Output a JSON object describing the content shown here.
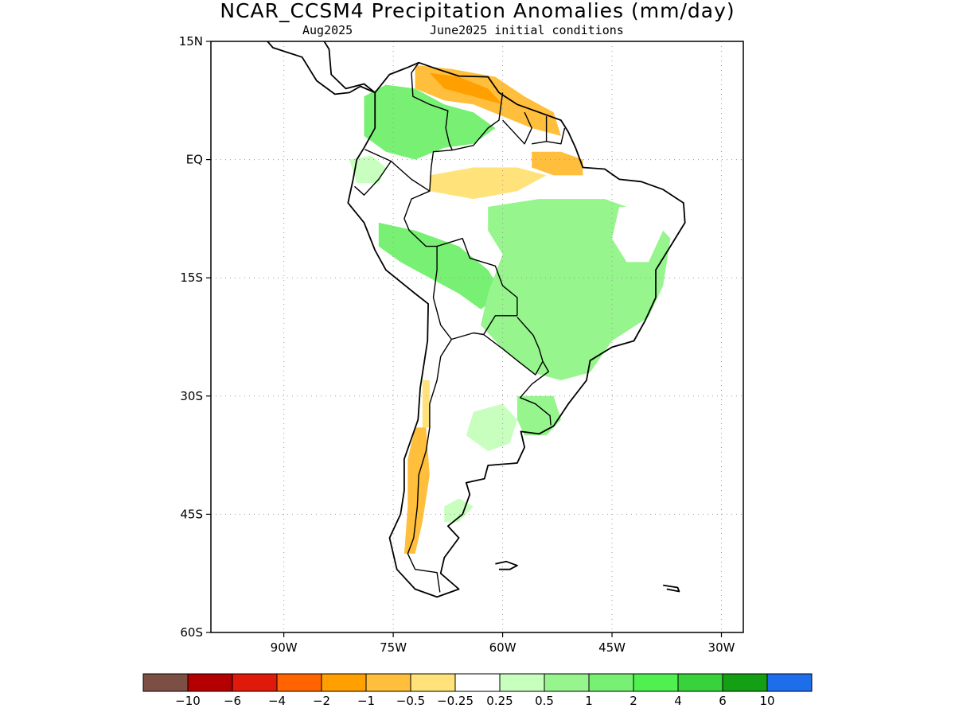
{
  "title": "NCAR_CCSM4 Precipitation Anomalies (mm/day)",
  "subtitle_left": "Aug2025",
  "subtitle_right": "June2025 initial conditions",
  "map": {
    "lon_range": [
      -100,
      -27
    ],
    "lat_range": [
      -60,
      15
    ],
    "lat_ticks": [
      {
        "value": 15,
        "label": "15N"
      },
      {
        "value": 0,
        "label": "EQ"
      },
      {
        "value": -15,
        "label": "15S"
      },
      {
        "value": -30,
        "label": "30S"
      },
      {
        "value": -45,
        "label": "45S"
      },
      {
        "value": -60,
        "label": "60S"
      }
    ],
    "lon_ticks": [
      {
        "value": -90,
        "label": "90W"
      },
      {
        "value": -75,
        "label": "75W"
      },
      {
        "value": -60,
        "label": "60W"
      },
      {
        "value": -45,
        "label": "45W"
      },
      {
        "value": -30,
        "label": "30W"
      }
    ],
    "grid_lines": "dotted"
  },
  "colorbar": {
    "colors": [
      "#7b4f44",
      "#b40000",
      "#e01a0a",
      "#ff6400",
      "#ffa000",
      "#ffbe3c",
      "#ffe37a",
      "#ffffff",
      "#c8ffbe",
      "#96f58c",
      "#78f073",
      "#50f050",
      "#37d23c",
      "#14a014",
      "#1e6eeb"
    ],
    "labels": [
      "−10",
      "−6",
      "−4",
      "−2",
      "−1",
      "−0.5",
      "−0.25",
      "0.25",
      "0.5",
      "1",
      "2",
      "4",
      "6",
      "10"
    ]
  },
  "anomaly_regions": [
    {
      "name": "venezuela-dry",
      "color": "#ffbe3c",
      "points": [
        [
          -72,
          12
        ],
        [
          -67,
          11.5
        ],
        [
          -61,
          10.5
        ],
        [
          -57,
          8
        ],
        [
          -53,
          6
        ],
        [
          -52,
          3
        ],
        [
          -56,
          4
        ],
        [
          -60,
          5.5
        ],
        [
          -64,
          7
        ],
        [
          -68,
          7.5
        ],
        [
          -72,
          9
        ]
      ]
    },
    {
      "name": "venezuela-core-dry",
      "color": "#ffa000",
      "points": [
        [
          -70,
          11
        ],
        [
          -66,
          10.5
        ],
        [
          -62,
          9
        ],
        [
          -60,
          7
        ],
        [
          -64,
          8
        ],
        [
          -68,
          9
        ]
      ]
    },
    {
      "name": "amazon-mouth-dry",
      "color": "#ffbe3c",
      "points": [
        [
          -56,
          1
        ],
        [
          -52,
          1
        ],
        [
          -49,
          0
        ],
        [
          -49,
          -2
        ],
        [
          -53,
          -2
        ],
        [
          -56,
          -1
        ]
      ]
    },
    {
      "name": "central-amazon-dry",
      "color": "#ffe37a",
      "points": [
        [
          -70,
          -2
        ],
        [
          -64,
          -1
        ],
        [
          -58,
          -1
        ],
        [
          -54,
          -2
        ],
        [
          -58,
          -4
        ],
        [
          -64,
          -5
        ],
        [
          -70,
          -4
        ]
      ]
    },
    {
      "name": "colombia-wet",
      "color": "#78f073",
      "points": [
        [
          -79,
          8
        ],
        [
          -76,
          9.5
        ],
        [
          -72,
          9
        ],
        [
          -68,
          7
        ],
        [
          -64,
          6
        ],
        [
          -61,
          4
        ],
        [
          -64,
          2
        ],
        [
          -68,
          1.5
        ],
        [
          -72,
          0
        ],
        [
          -76,
          1
        ],
        [
          -79,
          3
        ]
      ]
    },
    {
      "name": "ecuador-peru-wet",
      "color": "#c8ffbe",
      "points": [
        [
          -81,
          0
        ],
        [
          -78,
          0.5
        ],
        [
          -76,
          -1
        ],
        [
          -77,
          -3
        ],
        [
          -80,
          -3
        ]
      ]
    },
    {
      "name": "peru-bolivia-wet",
      "color": "#78f073",
      "points": [
        [
          -77,
          -8
        ],
        [
          -72,
          -9
        ],
        [
          -66,
          -11
        ],
        [
          -62,
          -14
        ],
        [
          -60,
          -17
        ],
        [
          -63,
          -19
        ],
        [
          -66,
          -17
        ],
        [
          -70,
          -15
        ],
        [
          -74,
          -13
        ],
        [
          -77,
          -11
        ]
      ]
    },
    {
      "name": "brazil-wet",
      "color": "#96f58c",
      "points": [
        [
          -62,
          -6
        ],
        [
          -55,
          -5
        ],
        [
          -46,
          -5
        ],
        [
          -40,
          -7
        ],
        [
          -37,
          -10
        ],
        [
          -38,
          -16
        ],
        [
          -40,
          -20
        ],
        [
          -45,
          -23
        ],
        [
          -48,
          -27
        ],
        [
          -52,
          -28
        ],
        [
          -56,
          -27
        ],
        [
          -60,
          -24
        ],
        [
          -63,
          -21
        ],
        [
          -62,
          -17
        ],
        [
          -60,
          -12
        ],
        [
          -62,
          -9
        ]
      ]
    },
    {
      "name": "nordeste-normal",
      "color": "#ffffff",
      "points": [
        [
          -44,
          -6
        ],
        [
          -40,
          -6
        ],
        [
          -38,
          -9
        ],
        [
          -40,
          -13
        ],
        [
          -43,
          -13
        ],
        [
          -45,
          -10
        ]
      ]
    },
    {
      "name": "uruguay-wet",
      "color": "#96f58c",
      "points": [
        [
          -58,
          -30
        ],
        [
          -53,
          -30
        ],
        [
          -52,
          -33
        ],
        [
          -54,
          -35
        ],
        [
          -57,
          -35
        ],
        [
          -58,
          -33
        ]
      ]
    },
    {
      "name": "argentina-wet",
      "color": "#c8ffbe",
      "points": [
        [
          -64,
          -32
        ],
        [
          -60,
          -31
        ],
        [
          -58,
          -33
        ],
        [
          -59,
          -36
        ],
        [
          -62,
          -37
        ],
        [
          -65,
          -35
        ]
      ]
    },
    {
      "name": "patagonia-wet",
      "color": "#c8ffbe",
      "points": [
        [
          -68,
          -44
        ],
        [
          -66,
          -43
        ],
        [
          -64,
          -44
        ],
        [
          -66,
          -46
        ],
        [
          -68,
          -46
        ]
      ]
    },
    {
      "name": "chile-dry",
      "color": "#ffbe3c",
      "points": [
        [
          -72,
          -34
        ],
        [
          -70.5,
          -34
        ],
        [
          -70,
          -40
        ],
        [
          -71,
          -46
        ],
        [
          -72,
          -50
        ],
        [
          -73.5,
          -50
        ],
        [
          -73,
          -44
        ],
        [
          -73,
          -38
        ]
      ]
    },
    {
      "name": "chile-mild-dry",
      "color": "#ffe37a",
      "points": [
        [
          -71,
          -28
        ],
        [
          -70,
          -28
        ],
        [
          -70,
          -34
        ],
        [
          -71,
          -34
        ]
      ]
    }
  ],
  "coastlines": [
    {
      "name": "south-america",
      "points": [
        [
          -77.5,
          8.5
        ],
        [
          -75.5,
          10.8
        ],
        [
          -73,
          11.7
        ],
        [
          -71.5,
          12.3
        ],
        [
          -69,
          11.5
        ],
        [
          -66,
          10.6
        ],
        [
          -62,
          10.5
        ],
        [
          -60.5,
          8.5
        ],
        [
          -58,
          7
        ],
        [
          -55,
          6
        ],
        [
          -52,
          5
        ],
        [
          -51,
          3.5
        ],
        [
          -50,
          1.5
        ],
        [
          -49,
          -1
        ],
        [
          -46,
          -1.2
        ],
        [
          -44,
          -2.5
        ],
        [
          -41,
          -2.8
        ],
        [
          -38,
          -3.8
        ],
        [
          -35.2,
          -5.5
        ],
        [
          -35,
          -8
        ],
        [
          -37,
          -11
        ],
        [
          -39,
          -14
        ],
        [
          -39,
          -17.5
        ],
        [
          -40.5,
          -20.5
        ],
        [
          -42,
          -23
        ],
        [
          -45,
          -23.8
        ],
        [
          -48,
          -25.5
        ],
        [
          -48.5,
          -28
        ],
        [
          -51,
          -31
        ],
        [
          -53,
          -33.8
        ],
        [
          -55,
          -34.8
        ],
        [
          -57.5,
          -34.5
        ],
        [
          -57,
          -36.5
        ],
        [
          -58,
          -38.5
        ],
        [
          -62,
          -38.8
        ],
        [
          -62.5,
          -40.5
        ],
        [
          -65,
          -41
        ],
        [
          -64.5,
          -42.5
        ],
        [
          -65.5,
          -45
        ],
        [
          -67.5,
          -46.5
        ],
        [
          -66,
          -48
        ],
        [
          -68,
          -50.5
        ],
        [
          -68.5,
          -52.5
        ],
        [
          -66,
          -54.5
        ],
        [
          -69,
          -55.5
        ],
        [
          -72,
          -54.5
        ],
        [
          -74.5,
          -52
        ],
        [
          -75.5,
          -48
        ],
        [
          -74,
          -45
        ],
        [
          -73.5,
          -42
        ],
        [
          -73.5,
          -38
        ],
        [
          -71.6,
          -33
        ],
        [
          -71.3,
          -29
        ],
        [
          -70.3,
          -23
        ],
        [
          -70.2,
          -18.3
        ],
        [
          -72,
          -17
        ],
        [
          -76,
          -14
        ],
        [
          -77.5,
          -11.5
        ],
        [
          -79,
          -8
        ],
        [
          -81.2,
          -5.5
        ],
        [
          -80.5,
          -2.5
        ],
        [
          -80,
          0
        ],
        [
          -79,
          1.5
        ],
        [
          -77.5,
          4
        ],
        [
          -77.5,
          8.5
        ]
      ]
    },
    {
      "name": "central-america",
      "points": [
        [
          -77.5,
          8.5
        ],
        [
          -79.5,
          9.3
        ],
        [
          -81,
          8.5
        ],
        [
          -83,
          8.3
        ],
        [
          -85.5,
          10
        ],
        [
          -87.5,
          13
        ],
        [
          -89.5,
          13.6
        ],
        [
          -91.5,
          14.2
        ],
        [
          -93,
          15.8
        ],
        [
          -94.5,
          16
        ],
        [
          -96.5,
          15.7
        ]
      ]
    },
    {
      "name": "central-america-caribbean",
      "points": [
        [
          -77.5,
          8.5
        ],
        [
          -79,
          9.6
        ],
        [
          -81.5,
          9
        ],
        [
          -83.5,
          10.8
        ],
        [
          -83.8,
          14
        ],
        [
          -85,
          15.8
        ],
        [
          -88,
          15.8
        ],
        [
          -88.5,
          17.5
        ]
      ]
    },
    {
      "name": "falklands",
      "points": [
        [
          -61,
          -51.3
        ],
        [
          -59.5,
          -51
        ],
        [
          -58,
          -51.5
        ],
        [
          -59,
          -52
        ],
        [
          -60.5,
          -52
        ]
      ]
    },
    {
      "name": "south-georgia",
      "points": [
        [
          -38,
          -54
        ],
        [
          -36,
          -54.3
        ],
        [
          -35.8,
          -54.8
        ],
        [
          -37.5,
          -54.5
        ]
      ]
    }
  ],
  "borders": [
    {
      "name": "colombia-venezuela",
      "points": [
        [
          -71.5,
          12.3
        ],
        [
          -72.5,
          11
        ],
        [
          -72.3,
          8
        ],
        [
          -70,
          7
        ],
        [
          -67.5,
          6.2
        ],
        [
          -67.8,
          4
        ],
        [
          -67.3,
          2
        ],
        [
          -66.9,
          1.2
        ]
      ]
    },
    {
      "name": "colombia-south",
      "points": [
        [
          -66.9,
          1.2
        ],
        [
          -69.5,
          1
        ],
        [
          -69.8,
          -1
        ],
        [
          -70,
          -4
        ],
        [
          -72.5,
          -2.5
        ],
        [
          -75.3,
          -0.2
        ],
        [
          -77,
          0.5
        ],
        [
          -78.9,
          1.3
        ]
      ]
    },
    {
      "name": "ecuador-peru",
      "points": [
        [
          -75.3,
          -0.2
        ],
        [
          -77,
          -2.5
        ],
        [
          -79,
          -4.5
        ],
        [
          -80.3,
          -3.4
        ]
      ]
    },
    {
      "name": "venezuela-brazil-guyana",
      "points": [
        [
          -66.9,
          1.2
        ],
        [
          -64,
          1.8
        ],
        [
          -62,
          4
        ],
        [
          -60.5,
          5
        ],
        [
          -60,
          8.5
        ]
      ]
    },
    {
      "name": "guianas",
      "points": [
        [
          -60,
          5
        ],
        [
          -57,
          2
        ],
        [
          -56,
          4
        ],
        [
          -57,
          6
        ]
      ]
    },
    {
      "name": "suriname-fg",
      "points": [
        [
          -56,
          2
        ],
        [
          -54,
          2.3
        ],
        [
          -54,
          5.5
        ]
      ]
    },
    {
      "name": "fg-brazil",
      "points": [
        [
          -54,
          2.3
        ],
        [
          -52,
          2
        ],
        [
          -51.5,
          4
        ]
      ]
    },
    {
      "name": "peru-brazil-bolivia",
      "points": [
        [
          -70,
          -4
        ],
        [
          -72.5,
          -5
        ],
        [
          -73.5,
          -7.5
        ],
        [
          -72.8,
          -9
        ],
        [
          -70.5,
          -11
        ],
        [
          -69,
          -11
        ],
        [
          -69,
          -14
        ],
        [
          -69.5,
          -17.5
        ]
      ]
    },
    {
      "name": "bolivia-brazil",
      "points": [
        [
          -69,
          -11
        ],
        [
          -65.5,
          -10
        ],
        [
          -64.5,
          -12.5
        ],
        [
          -61,
          -13.5
        ],
        [
          -60,
          -16
        ],
        [
          -58,
          -17.5
        ],
        [
          -58,
          -19.8
        ]
      ]
    },
    {
      "name": "bolivia-south",
      "points": [
        [
          -69.5,
          -17.5
        ],
        [
          -68.5,
          -21
        ],
        [
          -67,
          -22.8
        ],
        [
          -64,
          -22
        ],
        [
          -62.6,
          -22.2
        ],
        [
          -61,
          -19.8
        ],
        [
          -58,
          -19.8
        ]
      ]
    },
    {
      "name": "paraguay",
      "points": [
        [
          -62.6,
          -22.2
        ],
        [
          -60,
          -24
        ],
        [
          -58,
          -25.5
        ],
        [
          -55.5,
          -27.3
        ],
        [
          -54.5,
          -25.6
        ],
        [
          -55,
          -24
        ],
        [
          -55.8,
          -22.3
        ],
        [
          -58,
          -20
        ]
      ]
    },
    {
      "name": "argentina-brazil-uruguay",
      "points": [
        [
          -54.5,
          -25.6
        ],
        [
          -53.7,
          -26.9
        ],
        [
          -56,
          -28.5
        ],
        [
          -57.6,
          -30.2
        ],
        [
          -55.5,
          -31
        ],
        [
          -53.5,
          -32.5
        ],
        [
          -53.4,
          -33.7
        ]
      ]
    },
    {
      "name": "chile-argentina",
      "points": [
        [
          -67,
          -22.8
        ],
        [
          -68.5,
          -25
        ],
        [
          -69,
          -28
        ],
        [
          -70,
          -31
        ],
        [
          -70,
          -34
        ],
        [
          -70.5,
          -37
        ],
        [
          -71.5,
          -40
        ],
        [
          -71.7,
          -44
        ],
        [
          -72.2,
          -48
        ],
        [
          -73,
          -50
        ],
        [
          -72,
          -52
        ],
        [
          -69,
          -52.4
        ],
        [
          -68.6,
          -54.9
        ]
      ]
    }
  ]
}
